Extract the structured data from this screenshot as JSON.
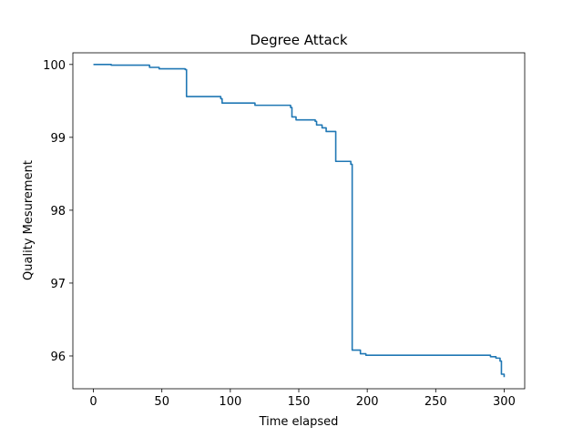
{
  "chart_data": {
    "type": "line",
    "title": "Degree Attack",
    "xlabel": "Time elapsed",
    "ylabel": "Quality Mesurement",
    "xlim": [
      -15,
      315
    ],
    "ylim": [
      95.55,
      100.16
    ],
    "xticks": [
      0,
      50,
      100,
      150,
      200,
      250,
      300
    ],
    "yticks": [
      96,
      97,
      98,
      99,
      100
    ],
    "grid": false,
    "series": [
      {
        "name": "quality",
        "color": "#1f77b4",
        "step": true,
        "x": [
          0,
          13,
          41,
          48,
          67,
          68,
          93,
          94,
          118,
          144,
          145,
          148,
          162,
          163,
          167,
          170,
          177,
          188,
          189,
          195,
          199,
          280,
          290,
          294,
          297,
          298,
          300
        ],
        "y": [
          100.0,
          99.99,
          99.96,
          99.94,
          99.93,
          99.56,
          99.53,
          99.47,
          99.44,
          99.41,
          99.28,
          99.24,
          99.22,
          99.17,
          99.13,
          99.08,
          98.67,
          98.63,
          96.08,
          96.03,
          96.01,
          96.01,
          95.99,
          95.97,
          95.93,
          95.75,
          95.71
        ]
      }
    ]
  }
}
